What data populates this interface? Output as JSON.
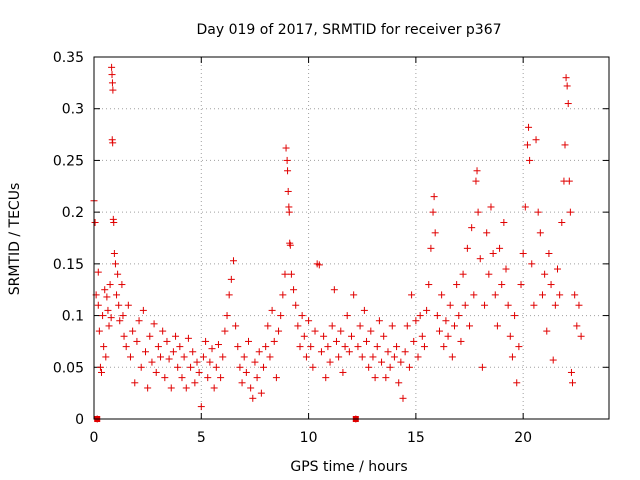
{
  "chart_data": {
    "type": "scatter",
    "title": "Day 019 of 2017, SRMTID for receiver p367",
    "xlabel": "GPS time / hours",
    "ylabel": "SRMTID / TECUs",
    "xlim": [
      0,
      24
    ],
    "ylim": [
      0,
      0.35
    ],
    "grid": true,
    "marker": "plus",
    "color": "#e00000",
    "x_ticks": [
      0,
      5,
      10,
      15,
      20
    ],
    "x_tick_labels": [
      "0",
      "5",
      "10",
      "15",
      "20"
    ],
    "y_ticks": [
      0,
      0.05,
      0.1,
      0.15,
      0.2,
      0.25,
      0.3,
      0.35
    ],
    "y_tick_labels": [
      "0",
      "0.05",
      "0.1",
      "0.15",
      "0.2",
      "0.25",
      "0.3",
      "0.35"
    ],
    "series": [
      {
        "name": "SRMTID",
        "points": [
          [
            0.0,
            0.211
          ],
          [
            0.05,
            0.19
          ],
          [
            0.1,
            0.12
          ],
          [
            0.15,
            0.0
          ],
          [
            0.2,
            0.142
          ],
          [
            0.2,
            0.11
          ],
          [
            0.25,
            0.085
          ],
          [
            0.3,
            0.05
          ],
          [
            0.35,
            0.045
          ],
          [
            0.4,
            0.1
          ],
          [
            0.45,
            0.07
          ],
          [
            0.5,
            0.125
          ],
          [
            0.55,
            0.06
          ],
          [
            0.6,
            0.118
          ],
          [
            0.65,
            0.105
          ],
          [
            0.7,
            0.09
          ],
          [
            0.75,
            0.13
          ],
          [
            0.8,
            0.098
          ],
          [
            0.82,
            0.34
          ],
          [
            0.84,
            0.333
          ],
          [
            0.86,
            0.325
          ],
          [
            0.88,
            0.318
          ],
          [
            0.85,
            0.27
          ],
          [
            0.87,
            0.267
          ],
          [
            0.9,
            0.193
          ],
          [
            0.92,
            0.19
          ],
          [
            0.95,
            0.16
          ],
          [
            1.0,
            0.15
          ],
          [
            1.05,
            0.12
          ],
          [
            1.1,
            0.14
          ],
          [
            1.15,
            0.11
          ],
          [
            1.2,
            0.095
          ],
          [
            1.3,
            0.13
          ],
          [
            1.35,
            0.1
          ],
          [
            1.4,
            0.08
          ],
          [
            1.5,
            0.07
          ],
          [
            1.6,
            0.11
          ],
          [
            1.7,
            0.06
          ],
          [
            1.8,
            0.085
          ],
          [
            1.9,
            0.035
          ],
          [
            2.0,
            0.075
          ],
          [
            2.1,
            0.095
          ],
          [
            2.2,
            0.05
          ],
          [
            2.3,
            0.105
          ],
          [
            2.4,
            0.065
          ],
          [
            2.5,
            0.03
          ],
          [
            2.6,
            0.08
          ],
          [
            2.7,
            0.055
          ],
          [
            2.8,
            0.092
          ],
          [
            2.9,
            0.045
          ],
          [
            3.0,
            0.07
          ],
          [
            3.1,
            0.06
          ],
          [
            3.2,
            0.085
          ],
          [
            3.3,
            0.04
          ],
          [
            3.4,
            0.075
          ],
          [
            3.5,
            0.058
          ],
          [
            3.6,
            0.03
          ],
          [
            3.7,
            0.065
          ],
          [
            3.8,
            0.08
          ],
          [
            3.9,
            0.05
          ],
          [
            4.0,
            0.07
          ],
          [
            4.1,
            0.04
          ],
          [
            4.2,
            0.06
          ],
          [
            4.3,
            0.03
          ],
          [
            4.4,
            0.078
          ],
          [
            4.5,
            0.05
          ],
          [
            4.6,
            0.065
          ],
          [
            4.7,
            0.035
          ],
          [
            4.8,
            0.055
          ],
          [
            4.9,
            0.045
          ],
          [
            5.0,
            0.012
          ],
          [
            5.1,
            0.06
          ],
          [
            5.2,
            0.075
          ],
          [
            5.3,
            0.04
          ],
          [
            5.4,
            0.055
          ],
          [
            5.5,
            0.068
          ],
          [
            5.6,
            0.03
          ],
          [
            5.7,
            0.05
          ],
          [
            5.8,
            0.072
          ],
          [
            5.9,
            0.04
          ],
          [
            6.0,
            0.06
          ],
          [
            6.1,
            0.085
          ],
          [
            6.2,
            0.1
          ],
          [
            6.3,
            0.12
          ],
          [
            6.4,
            0.135
          ],
          [
            6.5,
            0.153
          ],
          [
            6.6,
            0.09
          ],
          [
            6.7,
            0.07
          ],
          [
            6.8,
            0.05
          ],
          [
            6.9,
            0.035
          ],
          [
            7.0,
            0.06
          ],
          [
            7.1,
            0.045
          ],
          [
            7.2,
            0.075
          ],
          [
            7.3,
            0.03
          ],
          [
            7.4,
            0.02
          ],
          [
            7.5,
            0.055
          ],
          [
            7.6,
            0.04
          ],
          [
            7.7,
            0.065
          ],
          [
            7.8,
            0.025
          ],
          [
            7.9,
            0.05
          ],
          [
            8.0,
            0.07
          ],
          [
            8.1,
            0.09
          ],
          [
            8.2,
            0.06
          ],
          [
            8.3,
            0.105
          ],
          [
            8.4,
            0.075
          ],
          [
            8.5,
            0.04
          ],
          [
            8.6,
            0.085
          ],
          [
            8.7,
            0.1
          ],
          [
            8.8,
            0.12
          ],
          [
            8.9,
            0.14
          ],
          [
            8.95,
            0.262
          ],
          [
            9.0,
            0.25
          ],
          [
            9.02,
            0.24
          ],
          [
            9.05,
            0.22
          ],
          [
            9.08,
            0.205
          ],
          [
            9.1,
            0.2
          ],
          [
            9.12,
            0.17
          ],
          [
            9.15,
            0.168
          ],
          [
            9.2,
            0.14
          ],
          [
            9.3,
            0.125
          ],
          [
            9.4,
            0.11
          ],
          [
            9.5,
            0.09
          ],
          [
            9.6,
            0.07
          ],
          [
            9.7,
            0.1
          ],
          [
            9.8,
            0.08
          ],
          [
            9.9,
            0.06
          ],
          [
            10.0,
            0.095
          ],
          [
            10.1,
            0.07
          ],
          [
            10.2,
            0.05
          ],
          [
            10.3,
            0.085
          ],
          [
            10.4,
            0.15
          ],
          [
            10.5,
            0.149
          ],
          [
            10.6,
            0.065
          ],
          [
            10.7,
            0.08
          ],
          [
            10.8,
            0.04
          ],
          [
            10.9,
            0.07
          ],
          [
            11.0,
            0.055
          ],
          [
            11.1,
            0.09
          ],
          [
            11.2,
            0.125
          ],
          [
            11.3,
            0.075
          ],
          [
            11.4,
            0.06
          ],
          [
            11.5,
            0.085
          ],
          [
            11.6,
            0.045
          ],
          [
            11.7,
            0.07
          ],
          [
            11.8,
            0.1
          ],
          [
            11.9,
            0.065
          ],
          [
            12.0,
            0.08
          ],
          [
            12.1,
            0.12
          ],
          [
            12.2,
            0.0
          ],
          [
            12.3,
            0.07
          ],
          [
            12.4,
            0.09
          ],
          [
            12.5,
            0.06
          ],
          [
            12.6,
            0.105
          ],
          [
            12.7,
            0.075
          ],
          [
            12.8,
            0.05
          ],
          [
            12.9,
            0.085
          ],
          [
            13.0,
            0.06
          ],
          [
            13.1,
            0.04
          ],
          [
            13.2,
            0.07
          ],
          [
            13.3,
            0.095
          ],
          [
            13.4,
            0.055
          ],
          [
            13.5,
            0.08
          ],
          [
            13.6,
            0.04
          ],
          [
            13.7,
            0.065
          ],
          [
            13.8,
            0.05
          ],
          [
            13.9,
            0.09
          ],
          [
            14.0,
            0.06
          ],
          [
            14.1,
            0.07
          ],
          [
            14.2,
            0.035
          ],
          [
            14.3,
            0.055
          ],
          [
            14.4,
            0.02
          ],
          [
            14.5,
            0.065
          ],
          [
            14.6,
            0.09
          ],
          [
            14.7,
            0.05
          ],
          [
            14.8,
            0.12
          ],
          [
            14.9,
            0.075
          ],
          [
            15.0,
            0.095
          ],
          [
            15.1,
            0.06
          ],
          [
            15.2,
            0.1
          ],
          [
            15.3,
            0.08
          ],
          [
            15.4,
            0.07
          ],
          [
            15.5,
            0.105
          ],
          [
            15.6,
            0.13
          ],
          [
            15.7,
            0.165
          ],
          [
            15.8,
            0.2
          ],
          [
            15.85,
            0.215
          ],
          [
            15.9,
            0.18
          ],
          [
            16.0,
            0.1
          ],
          [
            16.1,
            0.085
          ],
          [
            16.2,
            0.12
          ],
          [
            16.3,
            0.07
          ],
          [
            16.4,
            0.095
          ],
          [
            16.5,
            0.08
          ],
          [
            16.6,
            0.11
          ],
          [
            16.7,
            0.06
          ],
          [
            16.8,
            0.09
          ],
          [
            16.9,
            0.13
          ],
          [
            17.0,
            0.1
          ],
          [
            17.1,
            0.075
          ],
          [
            17.2,
            0.14
          ],
          [
            17.3,
            0.11
          ],
          [
            17.4,
            0.165
          ],
          [
            17.5,
            0.09
          ],
          [
            17.6,
            0.185
          ],
          [
            17.7,
            0.12
          ],
          [
            17.8,
            0.23
          ],
          [
            17.85,
            0.24
          ],
          [
            17.9,
            0.2
          ],
          [
            18.0,
            0.155
          ],
          [
            18.1,
            0.05
          ],
          [
            18.2,
            0.11
          ],
          [
            18.3,
            0.18
          ],
          [
            18.4,
            0.14
          ],
          [
            18.5,
            0.205
          ],
          [
            18.6,
            0.16
          ],
          [
            18.7,
            0.12
          ],
          [
            18.8,
            0.09
          ],
          [
            18.9,
            0.165
          ],
          [
            19.0,
            0.13
          ],
          [
            19.1,
            0.19
          ],
          [
            19.2,
            0.145
          ],
          [
            19.3,
            0.11
          ],
          [
            19.4,
            0.08
          ],
          [
            19.5,
            0.06
          ],
          [
            19.6,
            0.1
          ],
          [
            19.7,
            0.035
          ],
          [
            19.8,
            0.07
          ],
          [
            19.9,
            0.13
          ],
          [
            20.0,
            0.16
          ],
          [
            20.1,
            0.205
          ],
          [
            20.2,
            0.265
          ],
          [
            20.25,
            0.282
          ],
          [
            20.3,
            0.25
          ],
          [
            20.4,
            0.15
          ],
          [
            20.5,
            0.11
          ],
          [
            20.6,
            0.27
          ],
          [
            20.7,
            0.2
          ],
          [
            20.8,
            0.18
          ],
          [
            20.9,
            0.12
          ],
          [
            21.0,
            0.14
          ],
          [
            21.1,
            0.085
          ],
          [
            21.2,
            0.16
          ],
          [
            21.3,
            0.13
          ],
          [
            21.4,
            0.057
          ],
          [
            21.5,
            0.11
          ],
          [
            21.6,
            0.145
          ],
          [
            21.7,
            0.12
          ],
          [
            21.8,
            0.19
          ],
          [
            21.9,
            0.23
          ],
          [
            21.95,
            0.265
          ],
          [
            22.0,
            0.33
          ],
          [
            22.05,
            0.322
          ],
          [
            22.1,
            0.305
          ],
          [
            22.15,
            0.23
          ],
          [
            22.2,
            0.2
          ],
          [
            22.25,
            0.045
          ],
          [
            22.3,
            0.035
          ],
          [
            22.4,
            0.12
          ],
          [
            22.5,
            0.09
          ],
          [
            22.6,
            0.11
          ],
          [
            22.7,
            0.08
          ]
        ]
      }
    ],
    "zero_markers": [
      0.15,
      12.2
    ]
  }
}
